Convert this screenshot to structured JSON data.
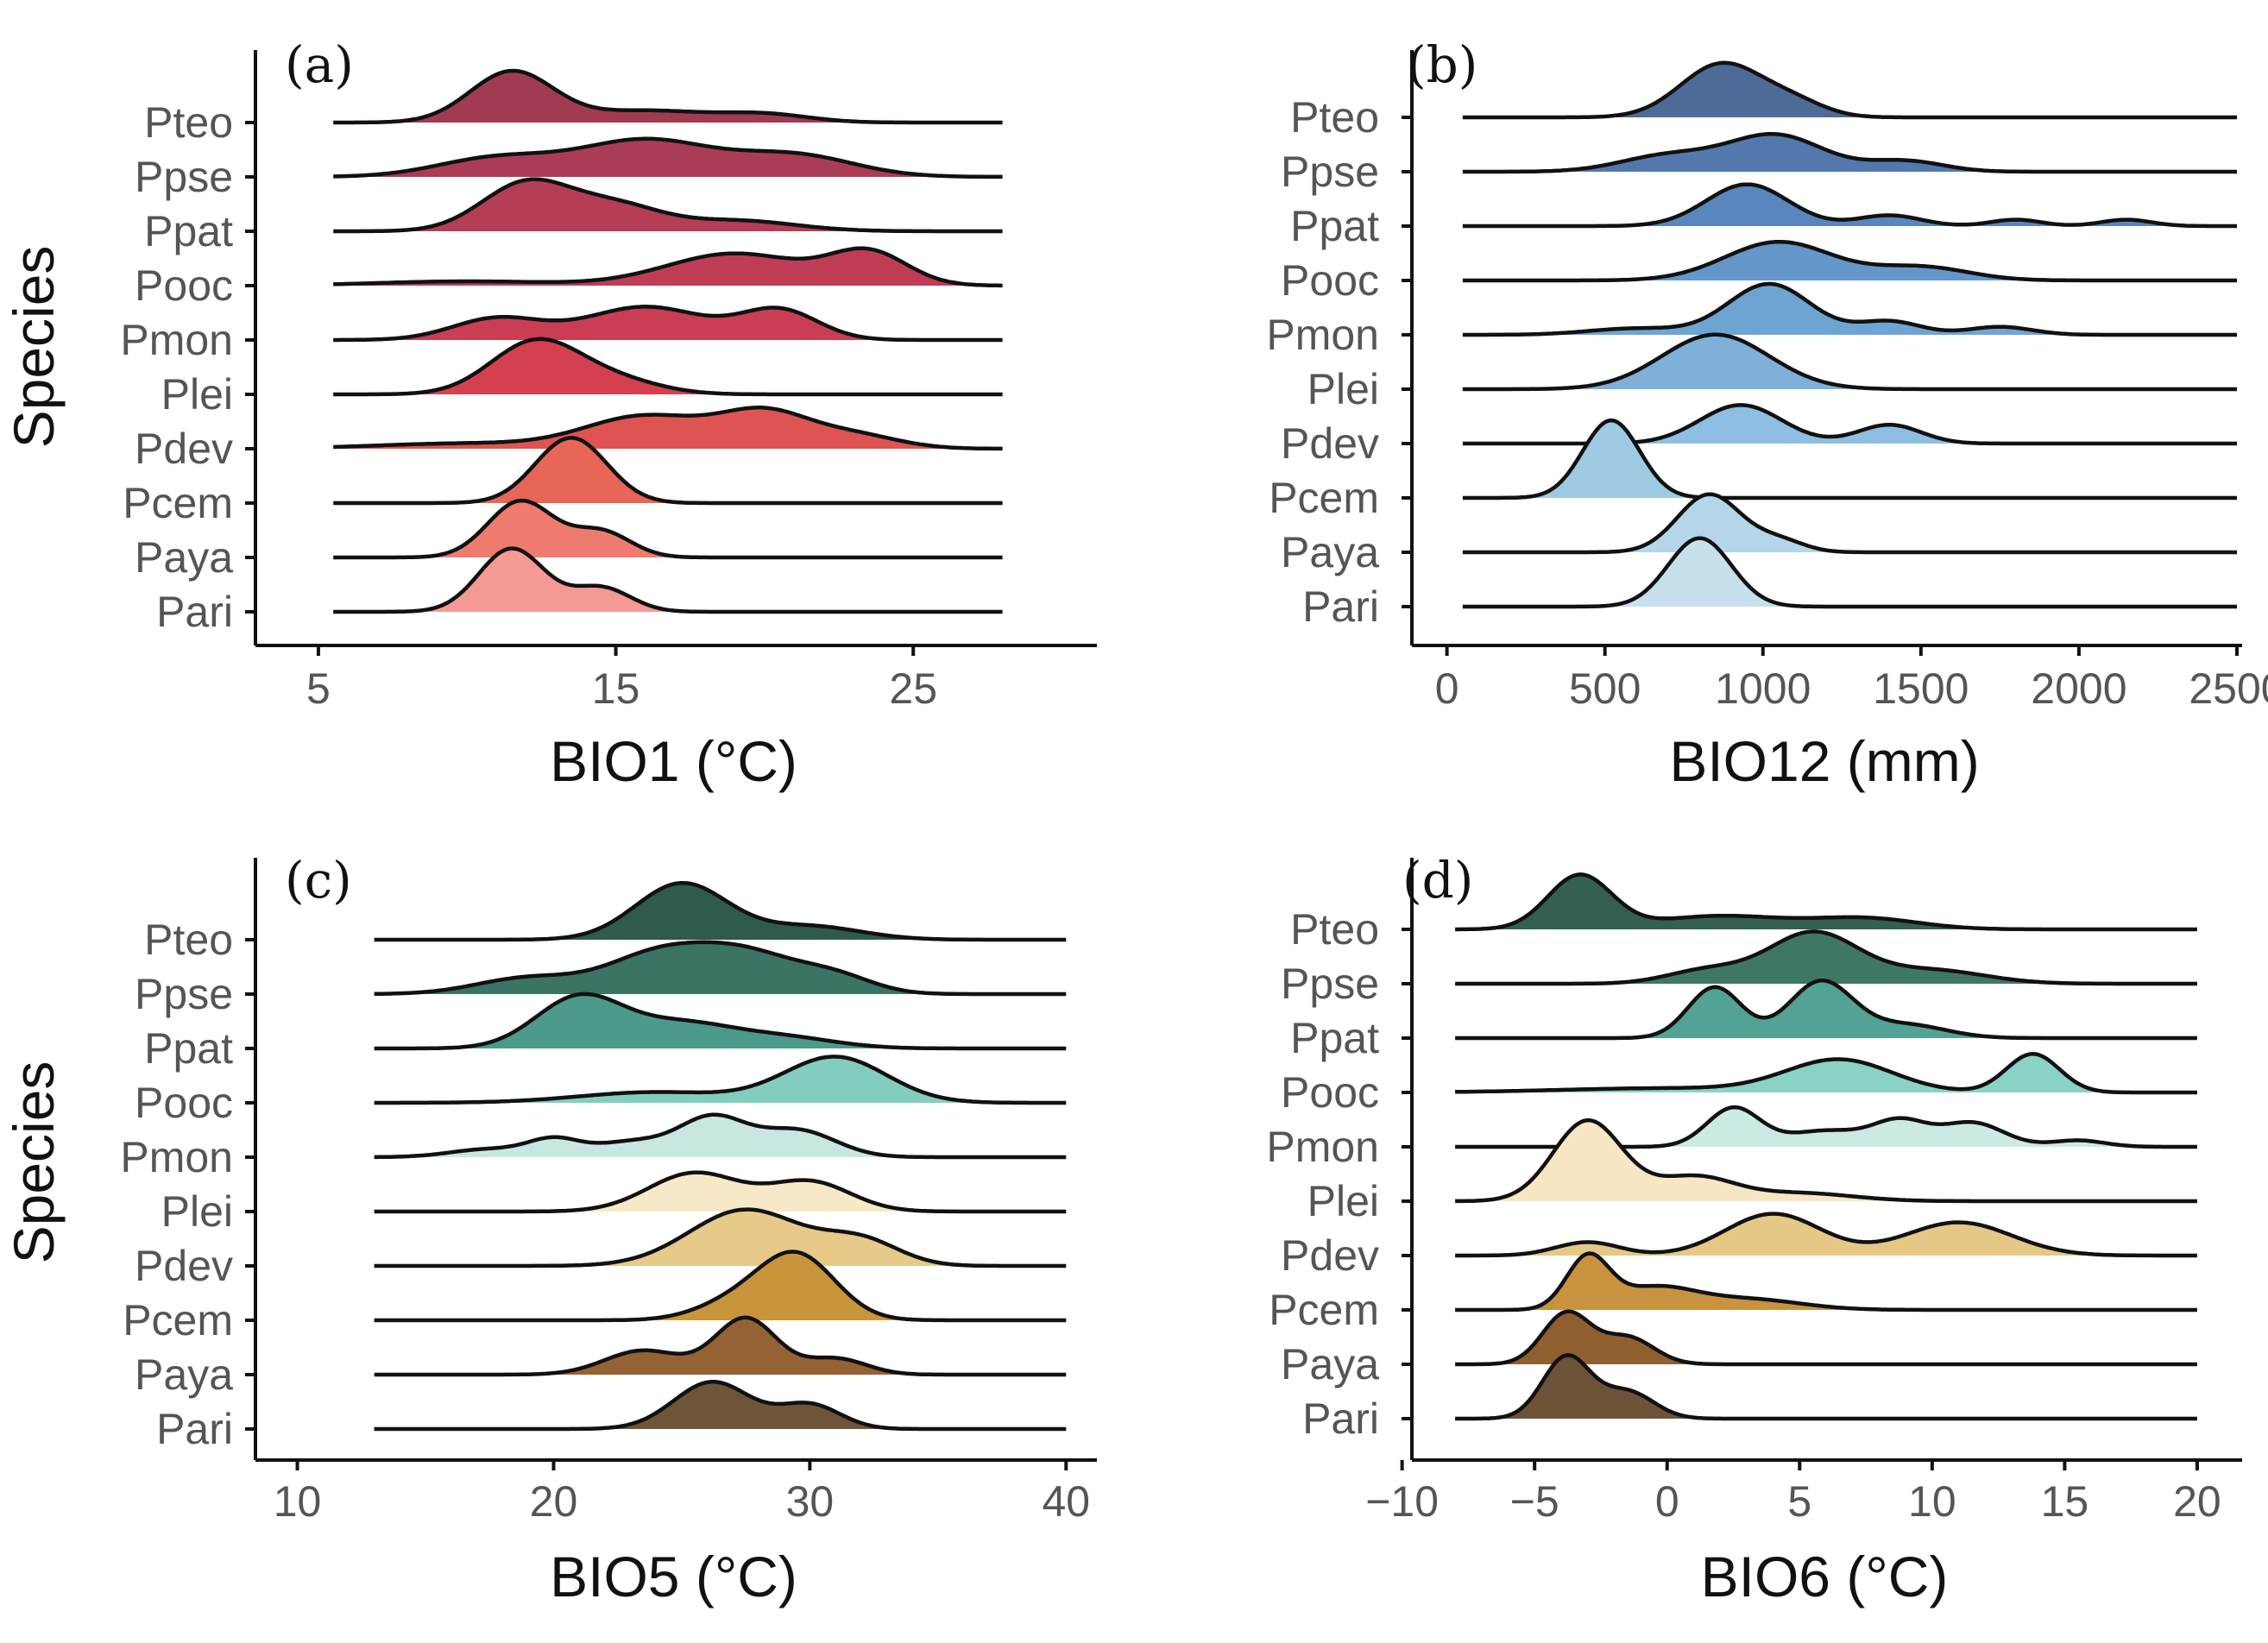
{
  "figure": {
    "y_label": "Species"
  },
  "species": [
    "Pteo",
    "Ppse",
    "Ppat",
    "Pooc",
    "Pmon",
    "Plei",
    "Pdev",
    "Pcem",
    "Paya",
    "Pari"
  ],
  "chart_data": [
    {
      "id": "a",
      "panel_label": "(a)",
      "type": "ridgeline",
      "xlabel": "BIO1 (°C)",
      "ylabel": "Species",
      "xlim": [
        3,
        31
      ],
      "xticks": [
        5,
        15,
        25
      ],
      "xticklabels": [
        "5",
        "15",
        "25"
      ],
      "x_range": [
        5.5,
        28
      ],
      "colors": [
        "#a13b52",
        "#ab3c55",
        "#b53d56",
        "#c03c55",
        "#ca3d52",
        "#d4404f",
        "#de5452",
        "#e76658",
        "#ef7b70",
        "#f59995"
      ],
      "series": [
        {
          "name": "Pteo",
          "peaks": [
            [
              11.5,
              0.95,
              1.4
            ],
            [
              16,
              0.22,
              2
            ],
            [
              20,
              0.15,
              1.5
            ]
          ]
        },
        {
          "name": "Ppse",
          "peaks": [
            [
              11,
              0.35,
              2
            ],
            [
              16,
              0.68,
              2.2
            ],
            [
              21,
              0.4,
              2
            ]
          ]
        },
        {
          "name": "Ppat",
          "peaks": [
            [
              12,
              0.9,
              1.5
            ],
            [
              15,
              0.45,
              1.5
            ],
            [
              19,
              0.2,
              2
            ]
          ]
        },
        {
          "name": "Pooc",
          "peaks": [
            [
              10,
              0.08,
              3
            ],
            [
              19,
              0.6,
              2.3
            ],
            [
              23.5,
              0.6,
              1.3
            ]
          ]
        },
        {
          "name": "Pmon",
          "peaks": [
            [
              11,
              0.4,
              1.5
            ],
            [
              16,
              0.62,
              2
            ],
            [
              20.5,
              0.55,
              1.3
            ]
          ]
        },
        {
          "name": "Plei",
          "peaks": [
            [
              12.3,
              0.98,
              1.5
            ],
            [
              15,
              0.25,
              1.5
            ]
          ]
        },
        {
          "name": "Pdev",
          "peaks": [
            [
              10,
              0.1,
              3
            ],
            [
              16,
              0.6,
              2
            ],
            [
              20,
              0.65,
              1.5
            ],
            [
              23,
              0.25,
              1.5
            ]
          ]
        },
        {
          "name": "Pcem",
          "peaks": [
            [
              13.5,
              1.22,
              1.2
            ]
          ]
        },
        {
          "name": "Paya",
          "peaks": [
            [
              11.8,
              1.05,
              1.1
            ],
            [
              14.5,
              0.48,
              1
            ]
          ]
        },
        {
          "name": "Pari",
          "peaks": [
            [
              11.5,
              1.18,
              1.1
            ],
            [
              14.5,
              0.45,
              1
            ]
          ]
        }
      ]
    },
    {
      "id": "b",
      "panel_label": "(b)",
      "type": "ridgeline",
      "xlabel": "BIO12 (mm)",
      "ylabel": "Species",
      "xlim": [
        -100,
        2500
      ],
      "xticks": [
        0,
        500,
        1000,
        1500,
        2000,
        2500
      ],
      "xticklabels": [
        "0",
        "500",
        "1000",
        "1500",
        "2000",
        "2500"
      ],
      "x_range": [
        50,
        2500
      ],
      "colors": [
        "#4e6b98",
        "#5378ad",
        "#5986be",
        "#6496c9",
        "#6ea4d2",
        "#7eb0da",
        "#8ebee1",
        "#9ecae4",
        "#b4d6e8",
        "#c6e0ec"
      ],
      "series": [
        {
          "name": "Pteo",
          "peaks": [
            [
              870,
              1,
              130
            ],
            [
              1100,
              0.25,
              100
            ]
          ]
        },
        {
          "name": "Ppse",
          "peaks": [
            [
              700,
              0.3,
              150
            ],
            [
              1040,
              0.68,
              150
            ],
            [
              1450,
              0.2,
              120
            ]
          ]
        },
        {
          "name": "Ppat",
          "peaks": [
            [
              950,
              0.78,
              130
            ],
            [
              1400,
              0.2,
              100
            ],
            [
              1800,
              0.12,
              80
            ],
            [
              2150,
              0.12,
              80
            ]
          ]
        },
        {
          "name": "Pooc",
          "peaks": [
            [
              1050,
              0.72,
              170
            ],
            [
              1500,
              0.25,
              150
            ]
          ]
        },
        {
          "name": "Pmon",
          "peaks": [
            [
              600,
              0.12,
              150
            ],
            [
              1020,
              0.95,
              130
            ],
            [
              1400,
              0.25,
              100
            ],
            [
              1750,
              0.15,
              100
            ]
          ]
        },
        {
          "name": "Plei",
          "peaks": [
            [
              850,
              1.02,
              170
            ]
          ]
        },
        {
          "name": "Pdev",
          "peaks": [
            [
              930,
              0.72,
              130
            ],
            [
              1400,
              0.35,
              100
            ]
          ]
        },
        {
          "name": "Pcem",
          "peaks": [
            [
              520,
              1.45,
              90
            ]
          ]
        },
        {
          "name": "Paya",
          "peaks": [
            [
              830,
              1.08,
              100
            ],
            [
              1050,
              0.22,
              80
            ]
          ]
        },
        {
          "name": "Pari",
          "peaks": [
            [
              800,
              1.28,
              100
            ]
          ]
        }
      ]
    },
    {
      "id": "c",
      "panel_label": "(c)",
      "type": "ridgeline",
      "xlabel": "BIO5 (°C)",
      "ylabel": "Species",
      "xlim": [
        8.5,
        41
      ],
      "xticks": [
        10,
        20,
        30,
        40
      ],
      "xticklabels": [
        "10",
        "20",
        "30",
        "40"
      ],
      "x_range": [
        13,
        40
      ],
      "colors": [
        "#2e5b4a",
        "#3b7364",
        "#4b9a8a",
        "#83cdbf",
        "#c9e7e1",
        "#f7e9c7",
        "#e7c98a",
        "#c8943c",
        "#946233",
        "#6e5439"
      ],
      "series": [
        {
          "name": "Pteo",
          "peaks": [
            [
              25,
              1.05,
              1.8
            ],
            [
              30,
              0.25,
              2
            ]
          ]
        },
        {
          "name": "Ppse",
          "peaks": [
            [
              19,
              0.3,
              2
            ],
            [
              24,
              0.7,
              2
            ],
            [
              27.5,
              0.72,
              2
            ],
            [
              31,
              0.3,
              1.5
            ]
          ]
        },
        {
          "name": "Ppat",
          "peaks": [
            [
              21,
              0.95,
              1.7
            ],
            [
              25,
              0.45,
              2
            ],
            [
              29,
              0.2,
              2
            ]
          ]
        },
        {
          "name": "Pooc",
          "peaks": [
            [
              24,
              0.2,
              3
            ],
            [
              31,
              0.85,
              2
            ]
          ]
        },
        {
          "name": "Pmon",
          "peaks": [
            [
              17.5,
              0.15,
              1.5
            ],
            [
              20,
              0.3,
              1
            ],
            [
              23,
              0.28,
              1.5
            ],
            [
              26.2,
              0.72,
              1.3
            ],
            [
              29.5,
              0.5,
              1.5
            ]
          ]
        },
        {
          "name": "Plei",
          "peaks": [
            [
              25.5,
              0.72,
              1.8
            ],
            [
              30,
              0.55,
              1.6
            ]
          ]
        },
        {
          "name": "Pdev",
          "peaks": [
            [
              27.5,
              1.05,
              2.2
            ],
            [
              32,
              0.45,
              1.5
            ]
          ]
        },
        {
          "name": "Pcem",
          "peaks": [
            [
              29.5,
              1.2,
              1.5
            ],
            [
              27,
              0.3,
              1.5
            ]
          ]
        },
        {
          "name": "Paya",
          "peaks": [
            [
              23.5,
              0.45,
              1.5
            ],
            [
              27.5,
              1.05,
              1.2
            ],
            [
              31,
              0.3,
              1.2
            ]
          ]
        },
        {
          "name": "Pari",
          "peaks": [
            [
              26.2,
              0.88,
              1.5
            ],
            [
              30,
              0.45,
              1.2
            ]
          ]
        }
      ]
    },
    {
      "id": "d",
      "panel_label": "(d)",
      "type": "ridgeline",
      "xlabel": "BIO6 (°C)",
      "ylabel": "Species",
      "xlim": [
        -9.5,
        21.5
      ],
      "xticks": [
        -10,
        -5,
        0,
        5,
        10,
        15,
        20
      ],
      "xticklabels": [
        "−10",
        "−5",
        "0",
        "5",
        "10",
        "15",
        "20"
      ],
      "x_range": [
        -8,
        20
      ],
      "colors": [
        "#355f4f",
        "#3f7766",
        "#52a393",
        "#8ad2c4",
        "#cceae4",
        "#f6e6c4",
        "#e5c886",
        "#c8923e",
        "#8f5f30",
        "#6c5237"
      ],
      "series": [
        {
          "name": "Pteo",
          "peaks": [
            [
              -3.3,
              1,
              1.2
            ],
            [
              2,
              0.25,
              2.5
            ],
            [
              7.5,
              0.2,
              2
            ]
          ]
        },
        {
          "name": "Ppse",
          "peaks": [
            [
              1.5,
              0.25,
              1.5
            ],
            [
              5.5,
              0.95,
              1.7
            ],
            [
              10,
              0.25,
              2
            ]
          ]
        },
        {
          "name": "Ppat",
          "peaks": [
            [
              1.8,
              0.95,
              1
            ],
            [
              5.8,
              1.05,
              1.2
            ],
            [
              9,
              0.25,
              1.5
            ]
          ]
        },
        {
          "name": "Pooc",
          "peaks": [
            [
              0,
              0.08,
              4
            ],
            [
              6.5,
              0.6,
              2
            ],
            [
              13.8,
              0.72,
              1
            ]
          ]
        },
        {
          "name": "Pmon",
          "peaks": [
            [
              2.5,
              0.72,
              1
            ],
            [
              6,
              0.3,
              1.5
            ],
            [
              8.8,
              0.45,
              1
            ],
            [
              11.5,
              0.45,
              1.2
            ],
            [
              15.5,
              0.12,
              1
            ]
          ]
        },
        {
          "name": "Plei",
          "peaks": [
            [
              -3,
              1.5,
              1.3
            ],
            [
              1,
              0.45,
              1.5
            ],
            [
              5,
              0.15,
              2
            ]
          ]
        },
        {
          "name": "Pdev",
          "peaks": [
            [
              -3,
              0.25,
              1.2
            ],
            [
              4,
              0.78,
              1.8
            ],
            [
              11,
              0.62,
              2
            ]
          ]
        },
        {
          "name": "Pcem",
          "peaks": [
            [
              -3,
              0.95,
              0.8
            ],
            [
              -0.5,
              0.4,
              1.5
            ],
            [
              3,
              0.2,
              2
            ]
          ]
        },
        {
          "name": "Paya",
          "peaks": [
            [
              -3.8,
              0.95,
              0.9
            ],
            [
              -1.5,
              0.5,
              1
            ]
          ]
        },
        {
          "name": "Pari",
          "peaks": [
            [
              -3.8,
              1.15,
              0.9
            ],
            [
              -1.5,
              0.5,
              1
            ]
          ]
        }
      ]
    }
  ]
}
